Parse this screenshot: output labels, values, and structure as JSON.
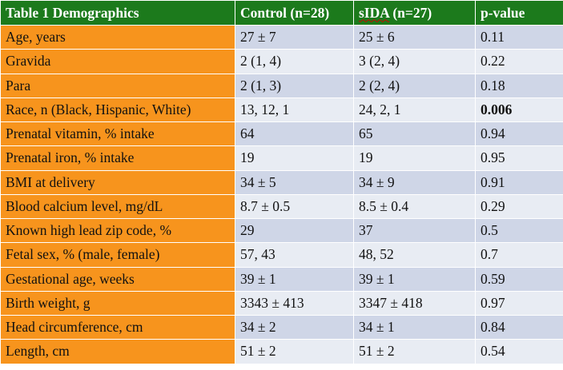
{
  "table": {
    "headers": {
      "title": "Table 1 Demographics",
      "control": "Control (n=28)",
      "sida_prefix": "sIDA",
      "sida_suffix": " (n=27)",
      "pvalue": "p-value"
    },
    "rows": [
      {
        "label": "Age, years",
        "control": "27 ± 7",
        "sida": "25 ± 6",
        "p": "0.11"
      },
      {
        "label": "Gravida",
        "control": "2 (1, 4)",
        "sida": "3 (2, 4)",
        "p": "0.22"
      },
      {
        "label": "Para",
        "control": "2 (1, 3)",
        "sida": "2 (2, 4)",
        "p": "0.18"
      },
      {
        "label": "Race, n (Black, Hispanic, White)",
        "control": "13, 12, 1",
        "sida": "24, 2, 1",
        "p": "0.006"
      },
      {
        "label": "Prenatal vitamin, % intake",
        "control": "64",
        "sida": "65",
        "p": "0.94"
      },
      {
        "label": "Prenatal iron, % intake",
        "control": "19",
        "sida": "19",
        "p": "0.95"
      },
      {
        "label": "BMI at delivery",
        "control": "34 ± 5",
        "sida": "34 ± 9",
        "p": "0.91"
      },
      {
        "label": "Blood calcium level, mg/dL",
        "control": "8.7 ± 0.5",
        "sida": "8.5 ± 0.4",
        "p": "0.29"
      },
      {
        "label": "Known high lead zip code, %",
        "control": "29",
        "sida": "37",
        "p": "0.5"
      },
      {
        "label": "Fetal sex, % (male, female)",
        "control": "57, 43",
        "sida": "48, 52",
        "p": "0.7"
      },
      {
        "label": "Gestational age, weeks",
        "control": "39 ± 1",
        "sida": "39 ± 1",
        "p": "0.59"
      },
      {
        "label": "Birth weight, g",
        "control": "3343 ± 413",
        "sida": "3347 ± 418",
        "p": "0.97"
      },
      {
        "label": "Head circumference, cm",
        "control": "34 ± 2",
        "sida": "34 ± 1",
        "p": "0.84"
      },
      {
        "label": "Length, cm",
        "control": "51 ± 2",
        "sida": "51 ± 2",
        "p": "0.54"
      }
    ],
    "colors": {
      "header_bg": "#1c7a1c",
      "label_bg": "#f7941d",
      "row_odd_bg": "#cfd6e7",
      "row_even_bg": "#e8ecf3"
    }
  }
}
